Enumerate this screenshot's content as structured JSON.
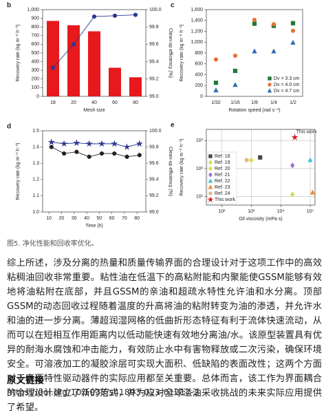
{
  "chart_data": [
    {
      "type": "bar",
      "label": "b",
      "xlabel": "Mesh size",
      "ylabel": "Recovery rate (kg m⁻² h⁻¹)",
      "y2label": "Clean-up efficiency (%)",
      "categories": [
        "18",
        "20",
        "40",
        "60",
        "80"
      ],
      "ylim": [
        0,
        1000
      ],
      "yticks": [
        0,
        100,
        200,
        300,
        400,
        500,
        600,
        700,
        800,
        900,
        {
          "value": 1000,
          "label": "1,000"
        }
      ],
      "y2lim": [
        99,
        100
      ],
      "y2ticks": [
        {
          "value": 99,
          "label": "99.0"
        },
        99.2,
        99.4,
        99.6,
        99.8,
        {
          "value": 100,
          "label": "100.0"
        }
      ],
      "series": [
        {
          "color": "#e8191c",
          "bar": true,
          "values": [
            870,
            820,
            750,
            330,
            220
          ]
        },
        {
          "color": "#2b3990",
          "axis": "y2",
          "line": true,
          "marker": "circle",
          "values": [
            99.33,
            99.6,
            99.92,
            99.93,
            99.94
          ]
        }
      ]
    },
    {
      "type": "scatter",
      "label": "c",
      "xlabel": "Rotation speed (rad s⁻¹)",
      "ylabel": "Recovery rate (kg m⁻² h⁻¹)",
      "categories": [
        "1/32",
        "1/16",
        "1/8",
        "1/4",
        "1/2"
      ],
      "ylim": [
        0,
        1600
      ],
      "yticks": [
        0,
        200,
        400,
        600,
        800,
        {
          "value": 1000,
          "label": "1,000"
        },
        {
          "value": 1200,
          "label": "1,200"
        },
        {
          "value": 1400,
          "label": "1,400"
        },
        {
          "value": 1600,
          "label": "1,600"
        }
      ],
      "legend": "lower right",
      "series": [
        {
          "name": "Dv = 3.3 cm",
          "color": "#1e7b34",
          "marker": "square",
          "values": [
            250,
            470,
            1340,
            1300,
            1350
          ]
        },
        {
          "name": "Dv = 4.0 cm",
          "color": "#e8703a",
          "marker": "circle",
          "values": [
            680,
            750,
            1410,
            1330,
            1210
          ]
        },
        {
          "name": "Dv = 4.7 cm",
          "color": "#2f6db5",
          "marker": "triangle",
          "values": [
            110,
            210,
            830,
            830,
            990
          ]
        }
      ]
    },
    {
      "type": "line",
      "label": "d",
      "xlabel": "Time (h)",
      "ylabel": "Recovery rate (kg m⁻² h⁻¹)",
      "y2label": "Clean-up efficiency (%)",
      "x": [
        12,
        22,
        32,
        42,
        52,
        62,
        72,
        82
      ],
      "xlim": [
        5,
        87
      ],
      "xticks": [
        10,
        20,
        30,
        40,
        50,
        60,
        70,
        80
      ],
      "ylim": [
        1,
        1.5
      ],
      "yticks": [
        {
          "value": 1,
          "label": "1.0"
        },
        1.1,
        1.2,
        1.3,
        1.4,
        1.5
      ],
      "y2lim": [
        99,
        100
      ],
      "y2ticks": [
        {
          "value": 99,
          "label": "99.0"
        },
        99.2,
        99.4,
        99.6,
        99.8,
        {
          "value": 100,
          "label": "100.0"
        }
      ],
      "series": [
        {
          "color": "#222222",
          "line": true,
          "marker": "circle",
          "values": [
            1.4,
            1.36,
            1.37,
            1.34,
            1.36,
            1.36,
            1.34,
            1.35
          ]
        },
        {
          "color": "#2b3990",
          "axis": "y2",
          "line": true,
          "marker": "star",
          "values": [
            99.86,
            99.84,
            99.85,
            99.84,
            99.84,
            99.84,
            99.8,
            99.84
          ]
        }
      ]
    },
    {
      "type": "scatter",
      "label": "e",
      "xlabel": "Oil viscosity (mPa s)",
      "ylabel": "Recovery rate (kg m⁻² h⁻¹)",
      "xlog": true,
      "ylog": true,
      "grid": true,
      "legend": "lower left",
      "annotation": "This work",
      "xlim": [
        30,
        145000
      ],
      "xticks": [
        {
          "value": 100,
          "label": "10²"
        },
        {
          "value": 1000,
          "label": "10³"
        },
        {
          "value": 10000,
          "label": "10⁴"
        },
        {
          "value": 100000,
          "label": "10⁵"
        }
      ],
      "ylim": [
        5,
        2500
      ],
      "yticks": [
        {
          "value": 10,
          "label": "10¹"
        },
        {
          "value": 100,
          "label": "10²"
        },
        {
          "value": 1000,
          "label": "10³"
        }
      ],
      "series": [
        {
          "name": "Ref. 18",
          "color": "#444444",
          "marker": "square",
          "x": [
            2000
          ],
          "values": [
            250
          ]
        },
        {
          "name": "Ref. 19",
          "color": "#c5e05a",
          "marker": "diamond",
          "x": [
            25000
          ],
          "values": [
            12
          ]
        },
        {
          "name": "Ref. 20",
          "color": "#e6d95a",
          "marker": "circle",
          "x": [
            1000
          ],
          "values": [
            200
          ]
        },
        {
          "name": "Ref. 21",
          "color": "#9b6fd0",
          "marker": "diamond",
          "x": [
            25000
          ],
          "values": [
            130
          ]
        },
        {
          "name": "Ref. 22",
          "color": "#3fc6e0",
          "marker": "triangle",
          "x": [
            100000
          ],
          "values": [
            200
          ]
        },
        {
          "name": "Ref. 23",
          "color": "#f08a2a",
          "marker": "triangle",
          "x": [
            120000
          ],
          "values": [
            14
          ]
        },
        {
          "name": "Ref. 24",
          "color": "#d9b98a",
          "marker": "circle",
          "x": [
            700
          ],
          "values": [
            200
          ]
        },
        {
          "name": "This work",
          "color": "#d7191c",
          "marker": "star",
          "x": [
            30000
          ],
          "values": [
            1300
          ]
        }
      ]
    }
  ],
  "caption": "图5. 净化性能和回收率优化。",
  "body": "综上所述，涉及分离的热量和质量传输界面的合理设计对于这项工作中的高效粘稠油回收非常重要。粘性油在低温下的高粘附能和内聚能使GSSM能够有效地将油粘附在底部，并且GSSM的亲油和超疏水特性允许油和水分离。顶部GSSM的动态回收过程随着温度的升高将油的粘附转变为油的渗透，并允许水和油的进一步分离。薄超润湿网格的低曲折形态特征有利于流体快速流动，从而可以在短相互作用距离内以低动能快速有效地分离油/水。该原型装置具有优异的耐海水腐蚀和冲击能力，有效防止水中有害物释放或二次污染，确保环境安全。可溶液加工的凝胶涂层可实现大面积、低缺陷的表面改性；这两个方面对于表面特性驱动器件的实际应用都至关重要。总体而言，该工作为界面耦合的合理设计建立了新的范式，并为应对全球溢油采收挑战的未来实际应用提供了希望。",
  "heading": "原文链接",
  "link": "https://doi.org/10.1038/s41893-023-01217-2"
}
